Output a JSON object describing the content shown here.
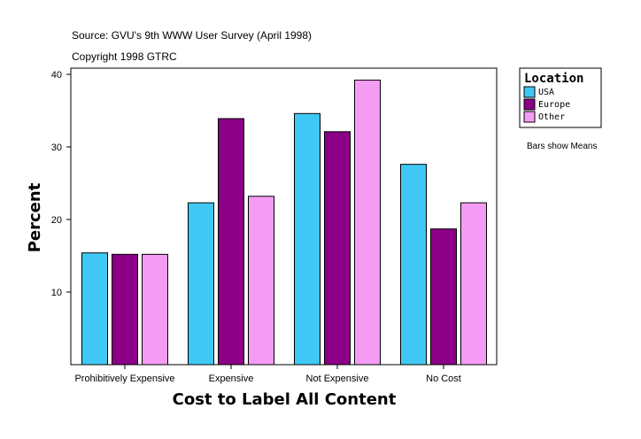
{
  "header": {
    "source": "Source: GVU's 9th WWW User Survey (April 1998)",
    "copyright": "Copyright 1998 GTRC"
  },
  "note": "Bars show Means",
  "chart_data": {
    "type": "bar",
    "title": "",
    "xlabel": "Cost to Label All Content",
    "ylabel": "Percent",
    "ylim": [
      0,
      40
    ],
    "yticks": [
      10,
      20,
      30,
      40
    ],
    "categories": [
      "Prohibitively Expensive",
      "Expensive",
      "Not Expensive",
      "No Cost"
    ],
    "legend": {
      "title": "Location",
      "placement": "top-right"
    },
    "series": [
      {
        "name": "USA",
        "color": "#40c8f4",
        "values": [
          15.4,
          22.3,
          34.6,
          27.6
        ]
      },
      {
        "name": "Europe",
        "color": "#8b0086",
        "values": [
          15.2,
          33.9,
          32.1,
          18.7
        ]
      },
      {
        "name": "Other",
        "color": "#f49cf4",
        "values": [
          15.2,
          23.2,
          39.2,
          22.3
        ]
      }
    ]
  }
}
